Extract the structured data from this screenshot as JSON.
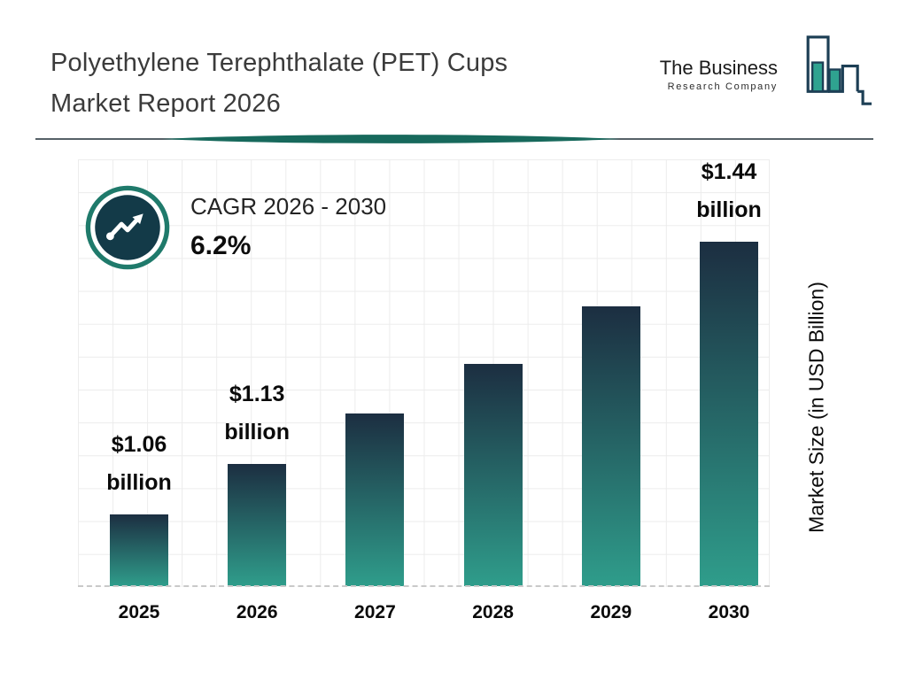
{
  "header": {
    "title_lines": [
      "Polyethylene Terephthalate (PET) Cups",
      "Market Report 2026"
    ],
    "logo": {
      "line1": "The Business",
      "line2": "Research Company"
    }
  },
  "cagr": {
    "label": "CAGR 2026 - 2030",
    "value": "6.2%"
  },
  "chart_data": {
    "type": "bar",
    "title": "Polyethylene Terephthalate (PET) Cups Market Report 2026",
    "categories": [
      "2025",
      "2026",
      "2027",
      "2028",
      "2029",
      "2030"
    ],
    "values": [
      1.06,
      1.13,
      1.2,
      1.27,
      1.35,
      1.44
    ],
    "value_labels": [
      {
        "amount": "$1.06",
        "unit": "billion"
      },
      {
        "amount": "$1.13",
        "unit": "billion"
      },
      null,
      null,
      null,
      {
        "amount": "$1.44",
        "unit": "billion"
      }
    ],
    "xlabel": "",
    "ylabel": "Market Size (in USD Billion)",
    "ylim": [
      0.96,
      1.44
    ],
    "grid": true,
    "legend": false,
    "colors": {
      "bar_top": "#1c2e41",
      "bar_bottom": "#2f9d8b",
      "accent_teal": "#1f7a6b",
      "icon_navy": "#133a48",
      "logo_outline": "#1d3f55",
      "logo_fill": "#2fa390"
    }
  }
}
